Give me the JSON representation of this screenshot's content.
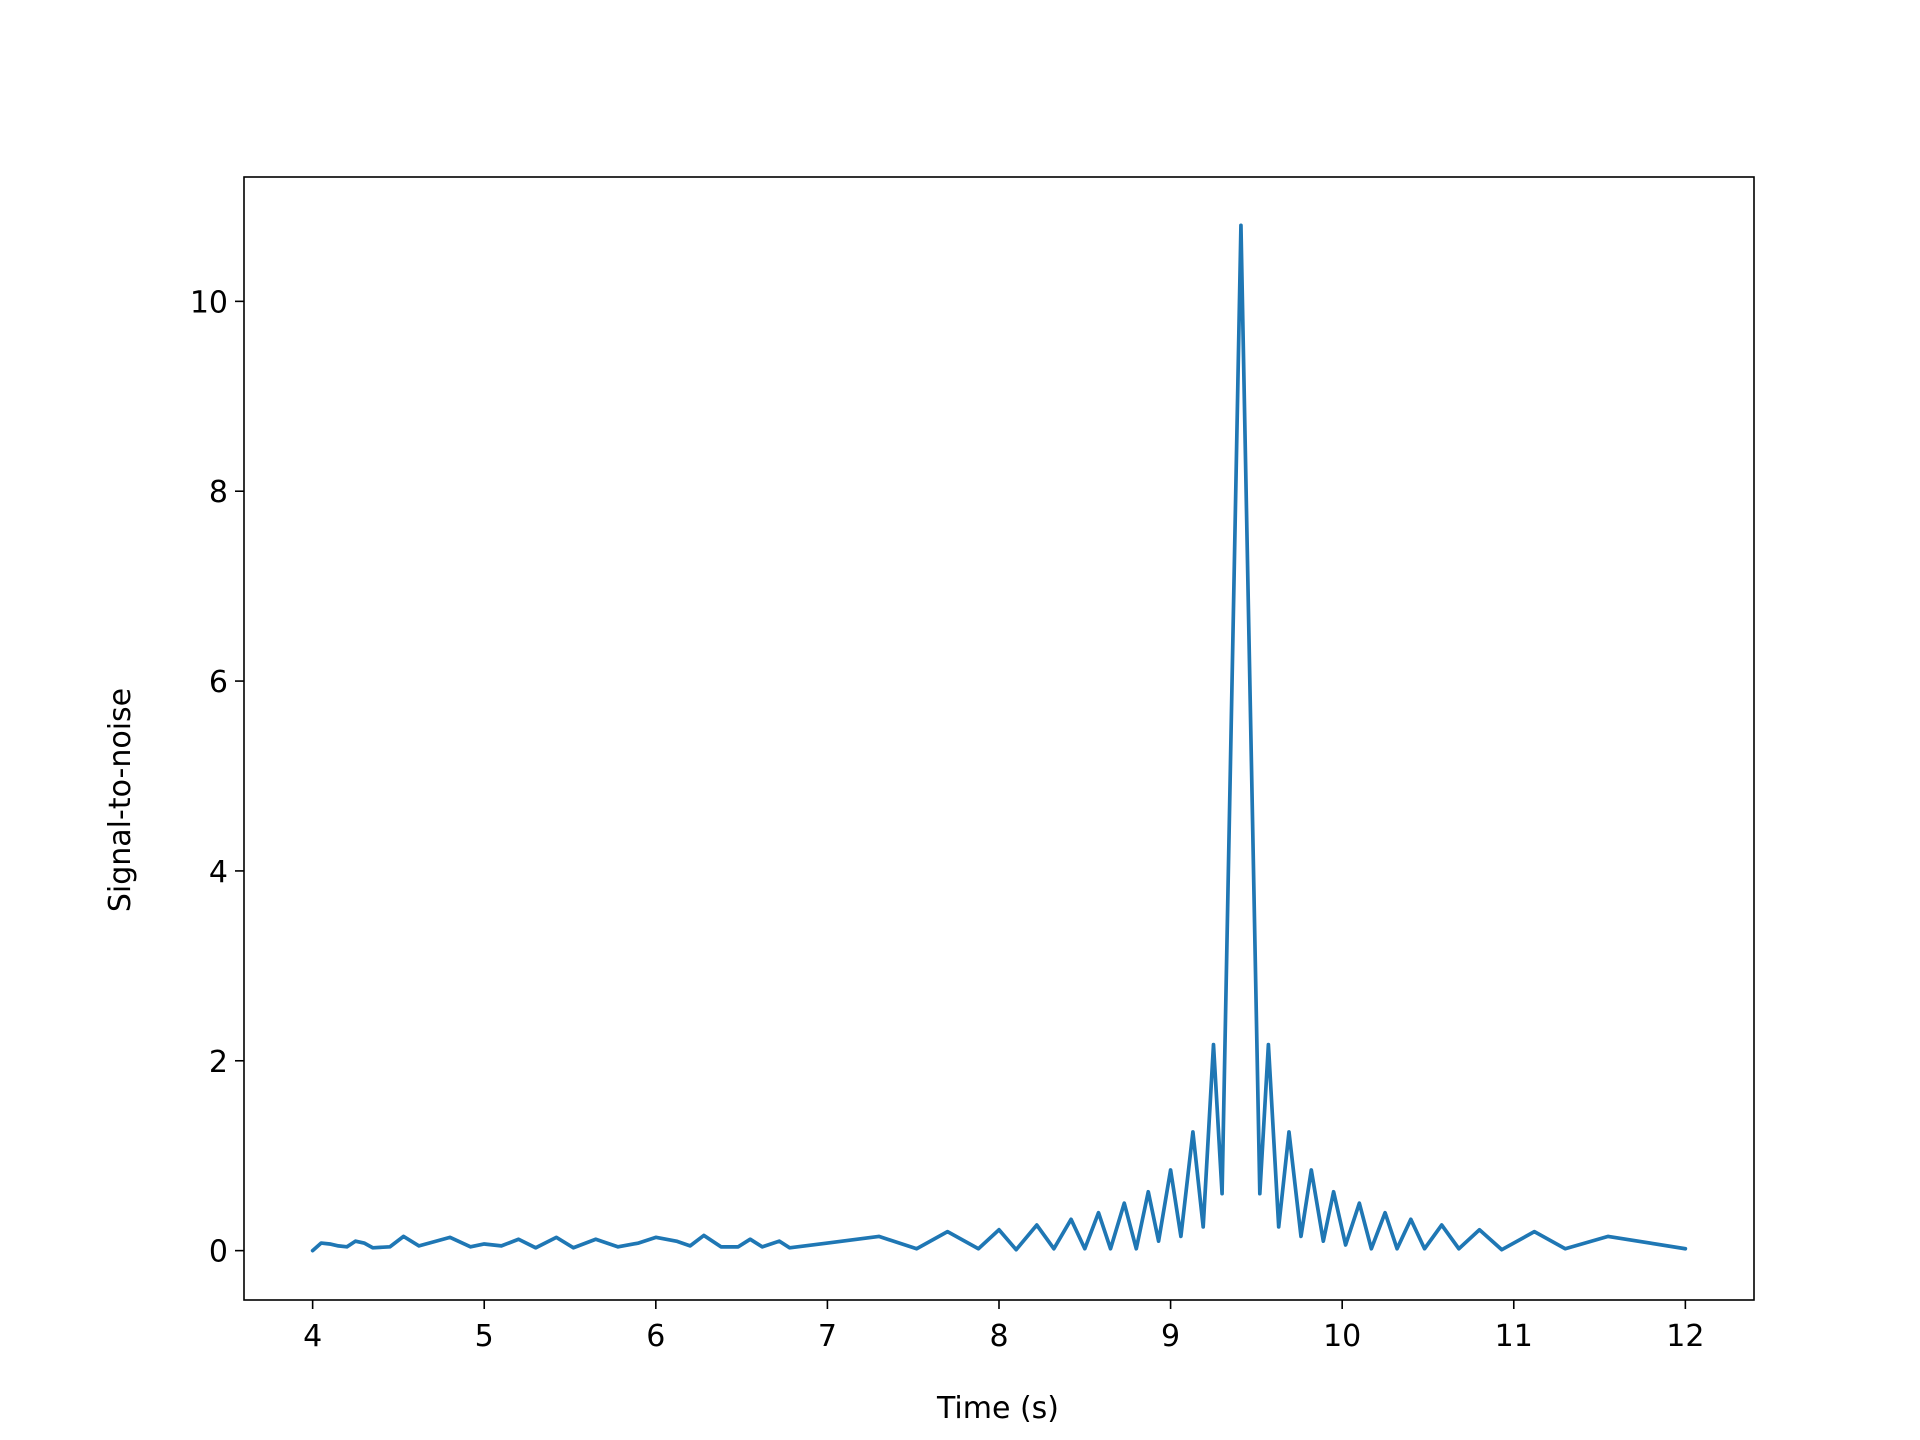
{
  "chart_data": {
    "type": "line",
    "xlabel": "Time (s)",
    "ylabel": "Signal-to-noise",
    "x": [
      4.0,
      4.05,
      4.1,
      4.15,
      4.2,
      4.25,
      4.3,
      4.35,
      4.45,
      4.53,
      4.62,
      4.8,
      4.92,
      5.0,
      5.1,
      5.2,
      5.3,
      5.42,
      5.52,
      5.65,
      5.78,
      5.9,
      6.0,
      6.12,
      6.2,
      6.28,
      6.38,
      6.48,
      6.55,
      6.62,
      6.72,
      6.78,
      7.0,
      7.3,
      7.52,
      7.7,
      7.88,
      8.0,
      8.1,
      8.22,
      8.32,
      8.42,
      8.5,
      8.58,
      8.65,
      8.73,
      8.8,
      8.87,
      8.93,
      9.0,
      9.06,
      9.13,
      9.19,
      9.25,
      9.3,
      9.41,
      9.52,
      9.57,
      9.63,
      9.69,
      9.76,
      9.82,
      9.89,
      9.95,
      10.02,
      10.1,
      10.17,
      10.25,
      10.32,
      10.4,
      10.48,
      10.58,
      10.68,
      10.8,
      10.93,
      11.12,
      11.3,
      11.55,
      12.0
    ],
    "series": [
      {
        "color": "#1f77b4",
        "values": [
          0.0,
          0.08,
          0.07,
          0.05,
          0.04,
          0.1,
          0.08,
          0.03,
          0.04,
          0.15,
          0.05,
          0.14,
          0.04,
          0.07,
          0.05,
          0.12,
          0.03,
          0.14,
          0.03,
          0.12,
          0.04,
          0.08,
          0.14,
          0.1,
          0.05,
          0.16,
          0.04,
          0.04,
          0.12,
          0.04,
          0.1,
          0.03,
          0.08,
          0.15,
          0.02,
          0.2,
          0.02,
          0.22,
          0.01,
          0.27,
          0.02,
          0.33,
          0.02,
          0.4,
          0.02,
          0.5,
          0.02,
          0.62,
          0.1,
          0.85,
          0.15,
          1.25,
          0.25,
          2.17,
          0.6,
          10.8,
          0.6,
          2.17,
          0.25,
          1.25,
          0.15,
          0.85,
          0.1,
          0.62,
          0.06,
          0.5,
          0.02,
          0.4,
          0.02,
          0.33,
          0.02,
          0.27,
          0.02,
          0.22,
          0.01,
          0.2,
          0.02,
          0.15,
          0.02
        ]
      }
    ],
    "xlim": [
      3.6,
      12.4
    ],
    "ylim": [
      -0.52,
      11.31
    ],
    "xticks": [
      4,
      5,
      6,
      7,
      8,
      9,
      10,
      11,
      12
    ],
    "yticks": [
      0,
      2,
      4,
      6,
      8,
      10
    ]
  }
}
